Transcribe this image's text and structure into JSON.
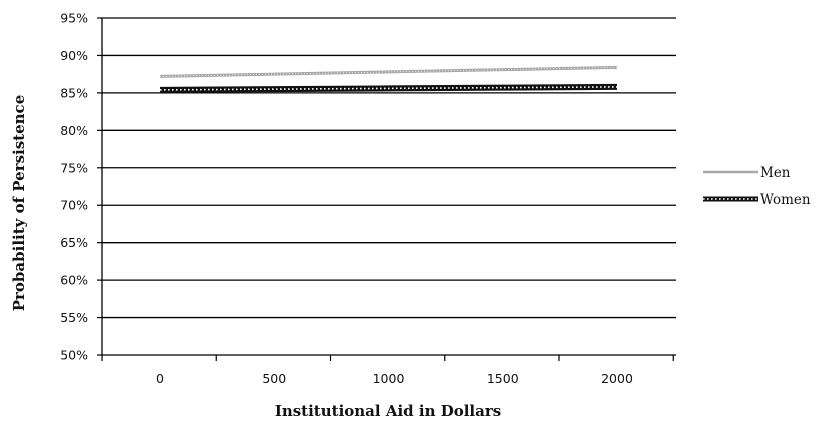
{
  "chart_data": {
    "type": "line",
    "title": "",
    "xlabel": "Institutional Aid in Dollars",
    "ylabel": "Probability of Persistence",
    "x": [
      0,
      500,
      1000,
      1500,
      2000
    ],
    "x_tick_labels": [
      "0",
      "500",
      "1000",
      "1500",
      "2000"
    ],
    "y_tick_labels": [
      "50%",
      "55%",
      "60%",
      "65%",
      "70%",
      "75%",
      "80%",
      "85%",
      "90%",
      "95%"
    ],
    "ylim": [
      0.5,
      0.95
    ],
    "grid": "horizontal",
    "legend_position": "right",
    "series": [
      {
        "name": "Men",
        "values": [
          0.872,
          0.875,
          0.878,
          0.881,
          0.884
        ],
        "color": "#a8a8a8",
        "style": "thin-gray"
      },
      {
        "name": "Women",
        "values": [
          0.854,
          0.855,
          0.856,
          0.857,
          0.858
        ],
        "color": "#111111",
        "style": "thick-dotted"
      }
    ]
  }
}
